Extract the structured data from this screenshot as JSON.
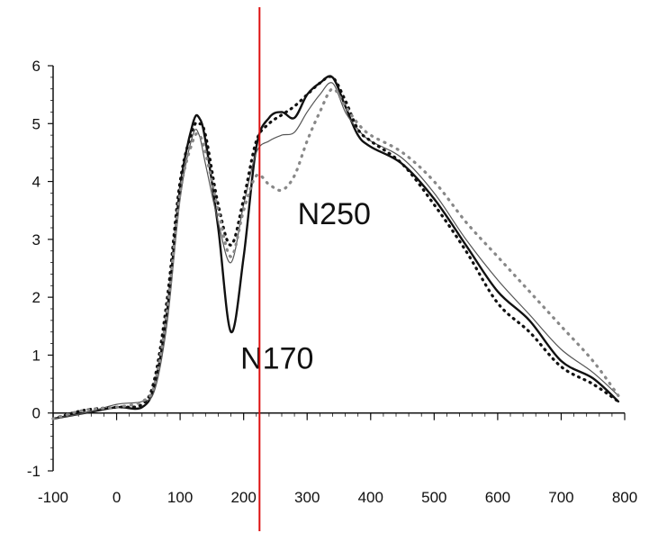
{
  "chart_data": {
    "type": "line",
    "title": "",
    "xlabel": "",
    "ylabel": "",
    "xlim": [
      -100,
      800
    ],
    "ylim": [
      -1,
      6
    ],
    "xticks": [
      "-100",
      "0",
      "100",
      "200",
      "300",
      "400",
      "500",
      "600",
      "700",
      "800"
    ],
    "yticks": [
      "-1",
      "0",
      "1",
      "2",
      "3",
      "4",
      "5",
      "6"
    ],
    "grid": false,
    "legend": "none",
    "series": [
      {
        "style": "solid-thick",
        "color": "#111111",
        "x": [
          -100,
          -50,
          0,
          40,
          60,
          80,
          100,
          120,
          130,
          140,
          160,
          180,
          200,
          220,
          240,
          260,
          280,
          300,
          320,
          340,
          360,
          380,
          400,
          450,
          500,
          550,
          600,
          650,
          700,
          750,
          790
        ],
        "y": [
          -0.1,
          0.0,
          0.1,
          0.1,
          0.5,
          1.8,
          3.9,
          5.0,
          5.1,
          4.7,
          3.2,
          1.4,
          2.7,
          4.6,
          5.1,
          5.2,
          5.1,
          5.5,
          5.7,
          5.8,
          5.3,
          4.8,
          4.6,
          4.3,
          3.7,
          2.9,
          2.1,
          1.6,
          0.9,
          0.6,
          0.2
        ]
      },
      {
        "style": "solid-thin",
        "color": "#555555",
        "x": [
          -100,
          -50,
          0,
          40,
          60,
          80,
          100,
          120,
          130,
          140,
          160,
          180,
          200,
          220,
          240,
          260,
          280,
          300,
          320,
          340,
          360,
          380,
          400,
          450,
          500,
          550,
          600,
          650,
          700,
          750,
          790
        ],
        "y": [
          -0.1,
          0.0,
          0.15,
          0.2,
          0.4,
          1.6,
          3.7,
          4.8,
          4.8,
          4.3,
          3.3,
          2.6,
          3.6,
          4.5,
          4.7,
          4.8,
          4.85,
          5.2,
          5.5,
          5.7,
          5.2,
          4.9,
          4.7,
          4.4,
          3.8,
          3.0,
          2.3,
          1.7,
          1.1,
          0.7,
          0.3
        ]
      },
      {
        "style": "dotted-black",
        "color": "#111111",
        "x": [
          -100,
          -50,
          0,
          40,
          60,
          80,
          100,
          120,
          130,
          140,
          160,
          180,
          200,
          220,
          240,
          260,
          280,
          300,
          320,
          340,
          360,
          380,
          400,
          450,
          500,
          550,
          600,
          650,
          700,
          750,
          790
        ],
        "y": [
          -0.1,
          0.05,
          0.1,
          0.15,
          0.6,
          2.0,
          4.0,
          4.9,
          5.0,
          4.8,
          3.6,
          2.9,
          3.7,
          4.7,
          5.0,
          5.15,
          5.3,
          5.5,
          5.7,
          5.8,
          5.4,
          4.9,
          4.7,
          4.3,
          3.6,
          2.8,
          1.9,
          1.4,
          0.8,
          0.5,
          0.2
        ]
      },
      {
        "style": "dotted-gray",
        "color": "#888888",
        "x": [
          -100,
          -50,
          0,
          40,
          60,
          80,
          100,
          120,
          130,
          140,
          160,
          180,
          200,
          220,
          240,
          260,
          280,
          300,
          320,
          340,
          360,
          380,
          400,
          450,
          500,
          550,
          600,
          650,
          700,
          750,
          790
        ],
        "y": [
          -0.1,
          0.05,
          0.1,
          0.2,
          0.5,
          1.8,
          3.8,
          4.7,
          4.8,
          4.5,
          3.5,
          2.7,
          3.5,
          4.1,
          3.95,
          3.85,
          4.1,
          4.7,
          5.2,
          5.6,
          5.3,
          5.0,
          4.8,
          4.5,
          4.0,
          3.3,
          2.7,
          2.1,
          1.5,
          0.9,
          0.3
        ]
      }
    ],
    "annotations": [
      {
        "text": "N170",
        "x": 195,
        "y": 0.95
      },
      {
        "text": "N250",
        "x": 285,
        "y": 3.45
      }
    ],
    "vertical_marker": {
      "x": 225,
      "color": "#dd1111"
    }
  }
}
